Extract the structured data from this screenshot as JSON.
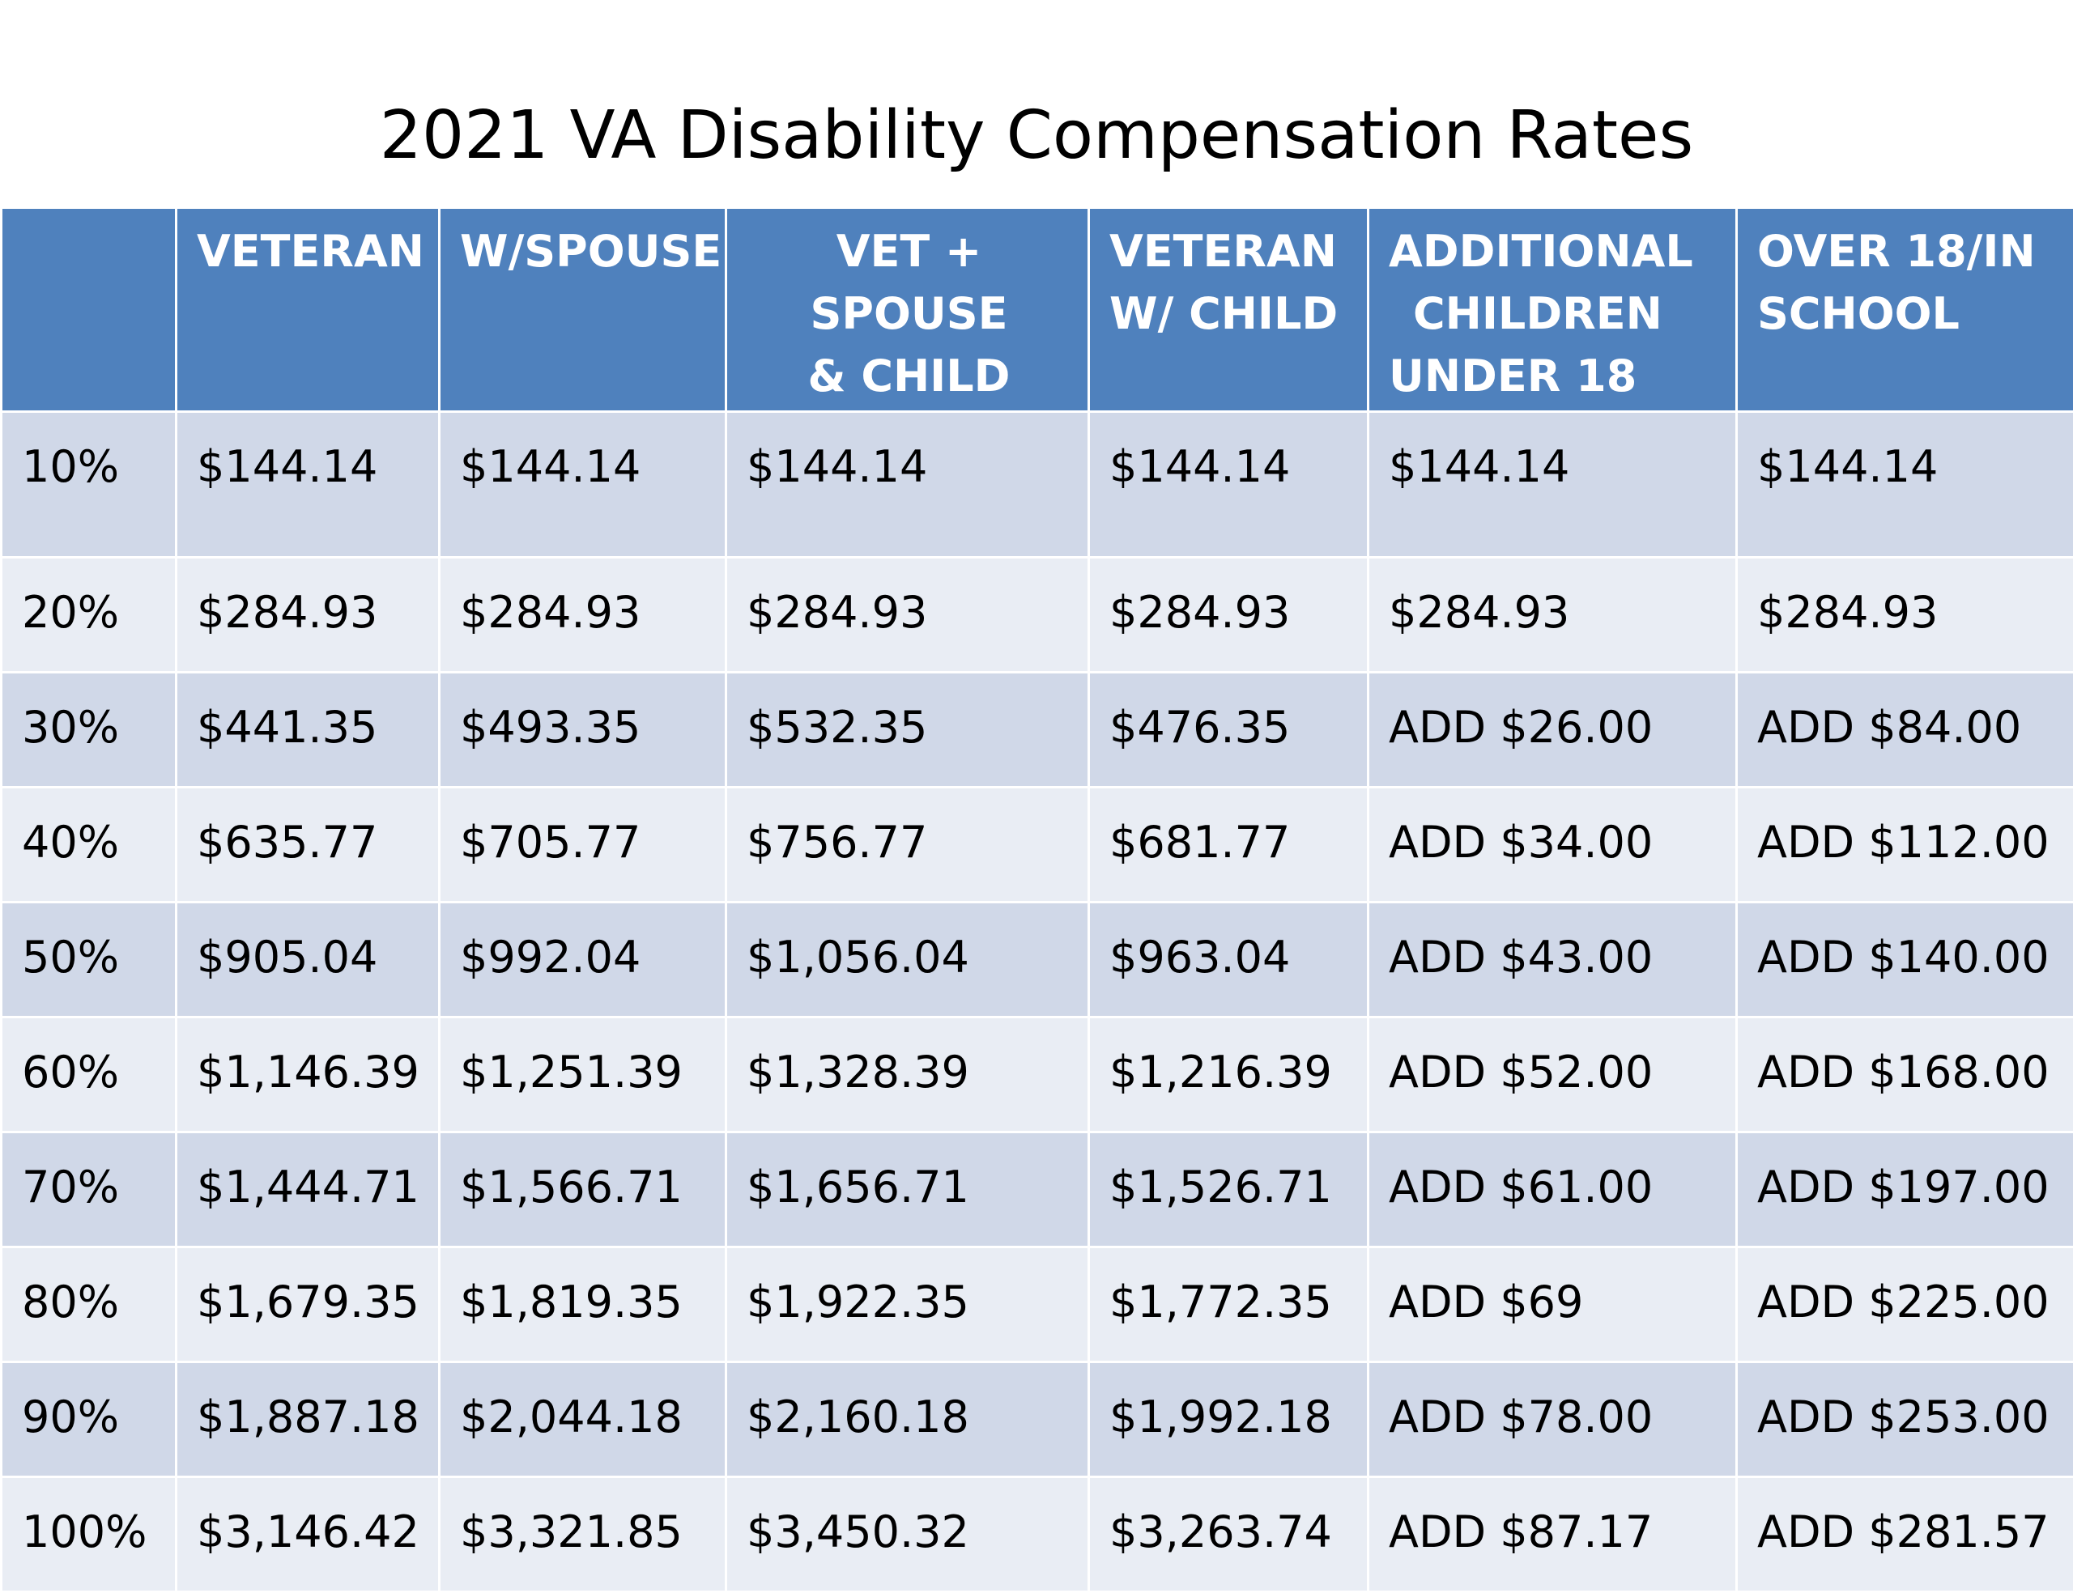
{
  "title": "2021 VA Disability Compensation Rates",
  "colors": {
    "header_bg": "#4f81bd",
    "row_dark": "#d0d8e8",
    "row_light": "#e9edf4",
    "header_text": "#ffffff"
  },
  "table": {
    "headers": [
      [
        ""
      ],
      [
        "VETERAN"
      ],
      [
        "W/SPOUSE"
      ],
      [
        "VET + SPOUSE",
        "& CHILD"
      ],
      [
        "VETERAN",
        "W/ CHILD"
      ],
      [
        "ADDITIONAL",
        "CHILDREN",
        "UNDER 18"
      ],
      [
        "OVER 18/IN",
        "SCHOOL"
      ]
    ],
    "rows": [
      [
        "10%",
        "$144.14",
        "$144.14",
        "$144.14",
        "$144.14",
        "$144.14",
        "$144.14"
      ],
      [
        "20%",
        "$284.93",
        "$284.93",
        "$284.93",
        "$284.93",
        "$284.93",
        "$284.93"
      ],
      [
        "30%",
        "$441.35",
        "$493.35",
        "$532.35",
        "$476.35",
        "ADD $26.00",
        "ADD $84.00"
      ],
      [
        "40%",
        "$635.77",
        "$705.77",
        "$756.77",
        "$681.77",
        "ADD $34.00",
        "ADD $112.00"
      ],
      [
        "50%",
        "$905.04",
        "$992.04",
        "$1,056.04",
        "$963.04",
        "ADD $43.00",
        "ADD $140.00"
      ],
      [
        "60%",
        "$1,146.39",
        "$1,251.39",
        "$1,328.39",
        "$1,216.39",
        "ADD $52.00",
        "ADD $168.00"
      ],
      [
        "70%",
        "$1,444.71",
        "$1,566.71",
        "$1,656.71",
        "$1,526.71",
        "ADD $61.00",
        "ADD $197.00"
      ],
      [
        "80%",
        "$1,679.35",
        "$1,819.35",
        "$1,922.35",
        "$1,772.35",
        "ADD $69",
        "ADD $225.00"
      ],
      [
        "90%",
        "$1,887.18",
        "$2,044.18",
        "$2,160.18",
        "$1,992.18",
        "ADD $78.00",
        "ADD $253.00"
      ],
      [
        "100%",
        "$3,146.42",
        "$3,321.85",
        "$3,450.32",
        "$3,263.74",
        "ADD $87.17",
        "ADD $281.57"
      ]
    ]
  }
}
